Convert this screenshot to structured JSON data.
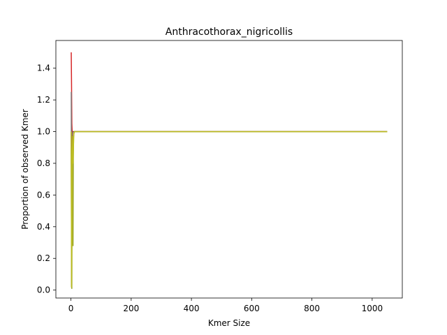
{
  "chart_data": {
    "type": "line",
    "title": "Anthracothorax_nigricollis",
    "xlabel": "Kmer Size",
    "ylabel": "Proportion of observed Kmer",
    "xlim": [
      -50,
      1100
    ],
    "ylim": [
      -0.05,
      1.575
    ],
    "xticks": [
      0,
      200,
      400,
      600,
      800,
      1000
    ],
    "yticks": [
      0.0,
      0.2,
      0.4,
      0.6,
      0.8,
      1.0,
      1.2,
      1.4
    ],
    "grid": false,
    "legend": "none",
    "series": [
      {
        "color": "#d62728",
        "x": [
          1,
          2,
          3,
          4,
          5,
          6,
          7,
          8,
          10,
          15,
          20,
          50,
          100,
          1050
        ],
        "y": [
          1.5,
          1.3,
          1.05,
          1.0,
          1.0,
          1.0,
          1.0,
          1.0,
          1.0,
          1.0,
          1.0,
          1.0,
          1.0,
          1.0
        ]
      },
      {
        "color": "#7f7f7f",
        "x": [
          1,
          2,
          3,
          4,
          5,
          6,
          7,
          8,
          10,
          15,
          20,
          50,
          100,
          1050
        ],
        "y": [
          1.25,
          0.02,
          0.4,
          0.9,
          0.98,
          1.0,
          1.0,
          1.0,
          1.0,
          1.0,
          1.0,
          1.0,
          1.0,
          1.0
        ]
      },
      {
        "color": "#8c564b",
        "x": [
          1,
          2,
          3,
          4,
          5,
          6,
          7,
          8,
          10,
          15,
          20,
          50,
          100,
          1050
        ],
        "y": [
          1.0,
          0.03,
          0.5,
          0.92,
          0.99,
          1.0,
          1.0,
          1.0,
          1.0,
          1.0,
          1.0,
          1.0,
          1.0,
          1.0
        ]
      },
      {
        "color": "#9ea82a",
        "x": [
          1,
          2,
          3,
          4,
          5,
          6,
          7,
          8,
          9,
          10,
          12,
          15,
          20,
          50,
          100,
          1050
        ],
        "y": [
          0.9,
          0.02,
          0.01,
          0.6,
          0.82,
          0.95,
          0.28,
          0.85,
          0.97,
          0.99,
          1.0,
          1.0,
          1.0,
          1.0,
          1.0,
          1.0
        ]
      },
      {
        "color": "#bcbd22",
        "x": [
          1,
          2,
          3,
          4,
          5,
          6,
          7,
          8,
          9,
          10,
          12,
          15,
          20,
          50,
          100,
          1050
        ],
        "y": [
          1.0,
          0.02,
          0.3,
          0.75,
          0.9,
          0.97,
          0.8,
          0.88,
          0.96,
          0.99,
          1.0,
          1.0,
          1.0,
          1.0,
          1.0,
          1.0
        ]
      }
    ]
  }
}
